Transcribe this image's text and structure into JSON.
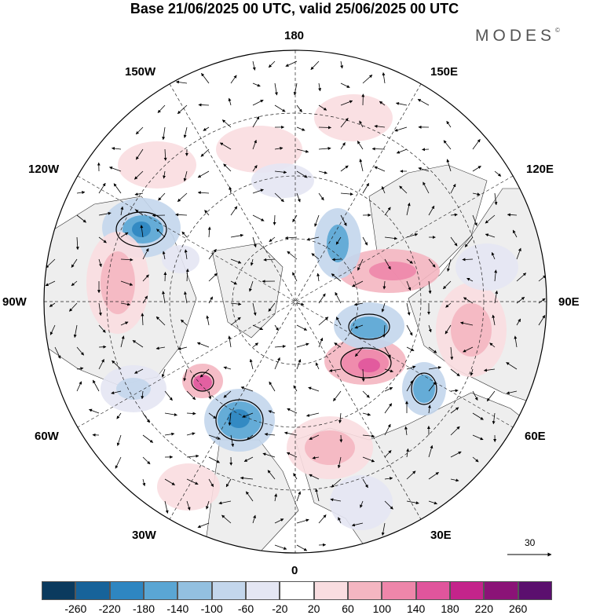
{
  "title": "Base 21/06/2025 00 UTC, valid 25/06/2025 00 UTC",
  "brand": "MODES",
  "brand_mark": "©",
  "longitude_labels": {
    "top": "180",
    "bottom": "0",
    "left": "90W",
    "right": "90E",
    "upper_left_1": "150W",
    "upper_left_2": "120W",
    "upper_right_1": "150E",
    "upper_right_2": "120E",
    "lower_left_1": "60W",
    "lower_left_2": "30W",
    "lower_right_1": "60E",
    "lower_right_2": "30E"
  },
  "vector_reference": {
    "value": "30"
  },
  "colorbar": {
    "colors": [
      "#0b3a5e",
      "#17639a",
      "#2e86c1",
      "#5aa6d4",
      "#93c0e0",
      "#c3d6ec",
      "#e4e6f3",
      "#ffffff",
      "#f9dde0",
      "#f4b6c1",
      "#ee86aa",
      "#e0559c",
      "#c4248b",
      "#8b1377",
      "#5b0f6e"
    ],
    "ticks": [
      "-260",
      "-220",
      "-180",
      "-140",
      "-100",
      "-60",
      "-20",
      "20",
      "60",
      "100",
      "140",
      "180",
      "220",
      "260"
    ]
  },
  "anomaly_colors": {
    "strong_blue": "#2e86c1",
    "mid_blue": "#5aa6d4",
    "light_blue": "#c3d6ec",
    "pale_blue": "#e4e6f3",
    "pale_red": "#f9dde0",
    "light_red": "#f4b6c1",
    "mid_red": "#ee86aa",
    "strong_red": "#e0559c",
    "land": "#eeeeee"
  }
}
